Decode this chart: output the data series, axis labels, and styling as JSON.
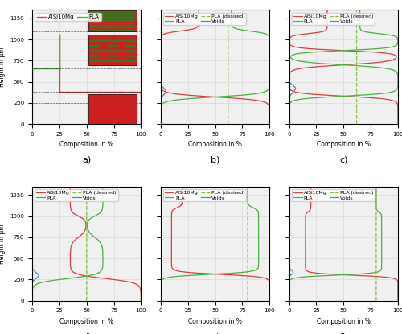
{
  "fig_width": 5.0,
  "fig_height": 4.15,
  "dpi": 100,
  "ylim": [
    0,
    1350
  ],
  "xlim": [
    0,
    100
  ],
  "yticks": [
    0,
    250,
    500,
    750,
    1000,
    1250
  ],
  "xticks": [
    0,
    25,
    50,
    75,
    100
  ],
  "xlabel": "Composition in %",
  "ylabel": "Height in μm",
  "color_AlSi": "#d94040",
  "color_PLA": "#4ab040",
  "color_PLA_desired": "#80c040",
  "color_Voids": "#4090b0",
  "background_color": "#f0f0f0",
  "pla_desired_b": 62,
  "pla_desired_c": 62,
  "pla_desired_d": 50,
  "pla_desired_e": 80,
  "pla_desired_f": 80
}
